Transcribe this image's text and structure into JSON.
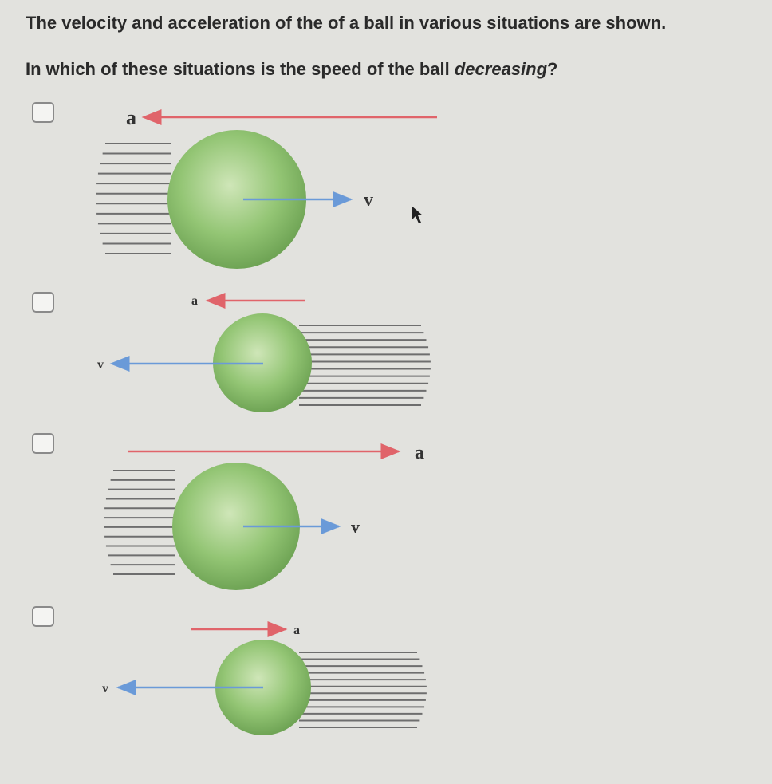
{
  "question": {
    "intro": "The velocity and acceleration of the of a ball in various situations are shown.",
    "prompt_before": "In which of these situations is the speed of the ball ",
    "prompt_emph": "decreasing",
    "prompt_after": "?"
  },
  "options": [
    {
      "a_label": "a",
      "v_label": "v",
      "a_direction": "left",
      "v_direction": "right"
    },
    {
      "a_label": "a",
      "v_label": "v",
      "a_direction": "left",
      "v_direction": "left"
    },
    {
      "a_label": "a",
      "v_label": "v",
      "a_direction": "right",
      "v_direction": "right"
    },
    {
      "a_label": "a",
      "v_label": "v",
      "a_direction": "right",
      "v_direction": "left"
    }
  ],
  "colors": {
    "acceleration": "#e0646a",
    "velocity": "#6a9ad8",
    "ball": "#8cbf6a"
  }
}
